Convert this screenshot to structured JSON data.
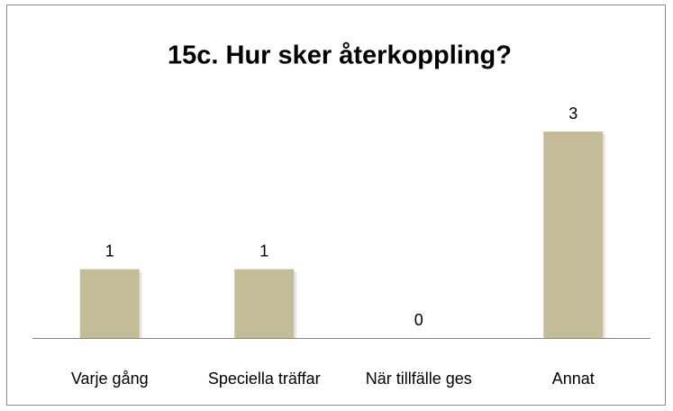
{
  "chart_data": {
    "type": "bar",
    "title": "15c. Hur sker återkoppling?",
    "categories": [
      "Varje gång",
      "Speciella träffar",
      "När tillfälle ges",
      "Annat"
    ],
    "values": [
      1,
      1,
      0,
      3
    ],
    "color": "#c4bc96"
  }
}
